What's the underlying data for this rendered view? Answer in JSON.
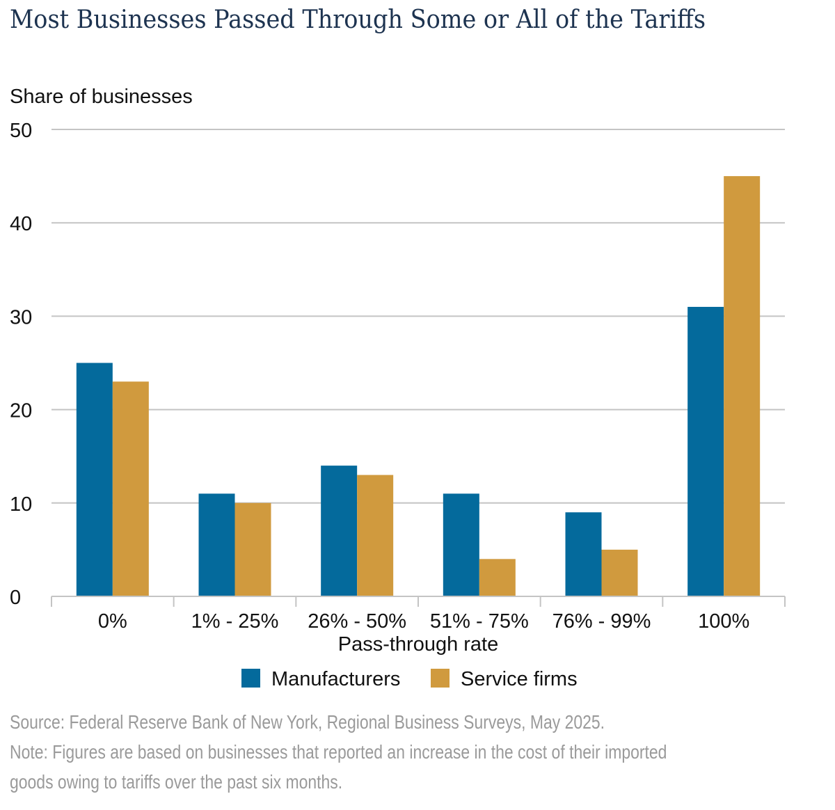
{
  "title": "Most Businesses Passed Through Some or All of the Tariffs",
  "chart_data": {
    "type": "bar",
    "title": "Most Businesses Passed Through Some or All of the Tariffs",
    "ylabel": "Share of businesses",
    "xlabel": "Pass-through rate",
    "ylim": [
      0,
      50
    ],
    "yticks": [
      0,
      10,
      20,
      30,
      40,
      50
    ],
    "grid": true,
    "legend": "bottom",
    "categories": [
      "0%",
      "1% - 25%",
      "26% - 50%",
      "51% - 75%",
      "76% - 99%",
      "100%"
    ],
    "series": [
      {
        "name": "Manufacturers",
        "color": "#046a9c",
        "values": [
          25,
          11,
          14,
          11,
          9,
          31
        ]
      },
      {
        "name": "Service firms",
        "color": "#d09a3e",
        "values": [
          23,
          10,
          13,
          4,
          5,
          45
        ]
      }
    ]
  },
  "source": "Source: Federal Reserve Bank of New York, Regional Business Surveys, May 2025.",
  "note_line1": "Note: Figures are based on businesses that reported an increase in the cost of their imported",
  "note_line2": "goods owing to tariffs over the past six months."
}
